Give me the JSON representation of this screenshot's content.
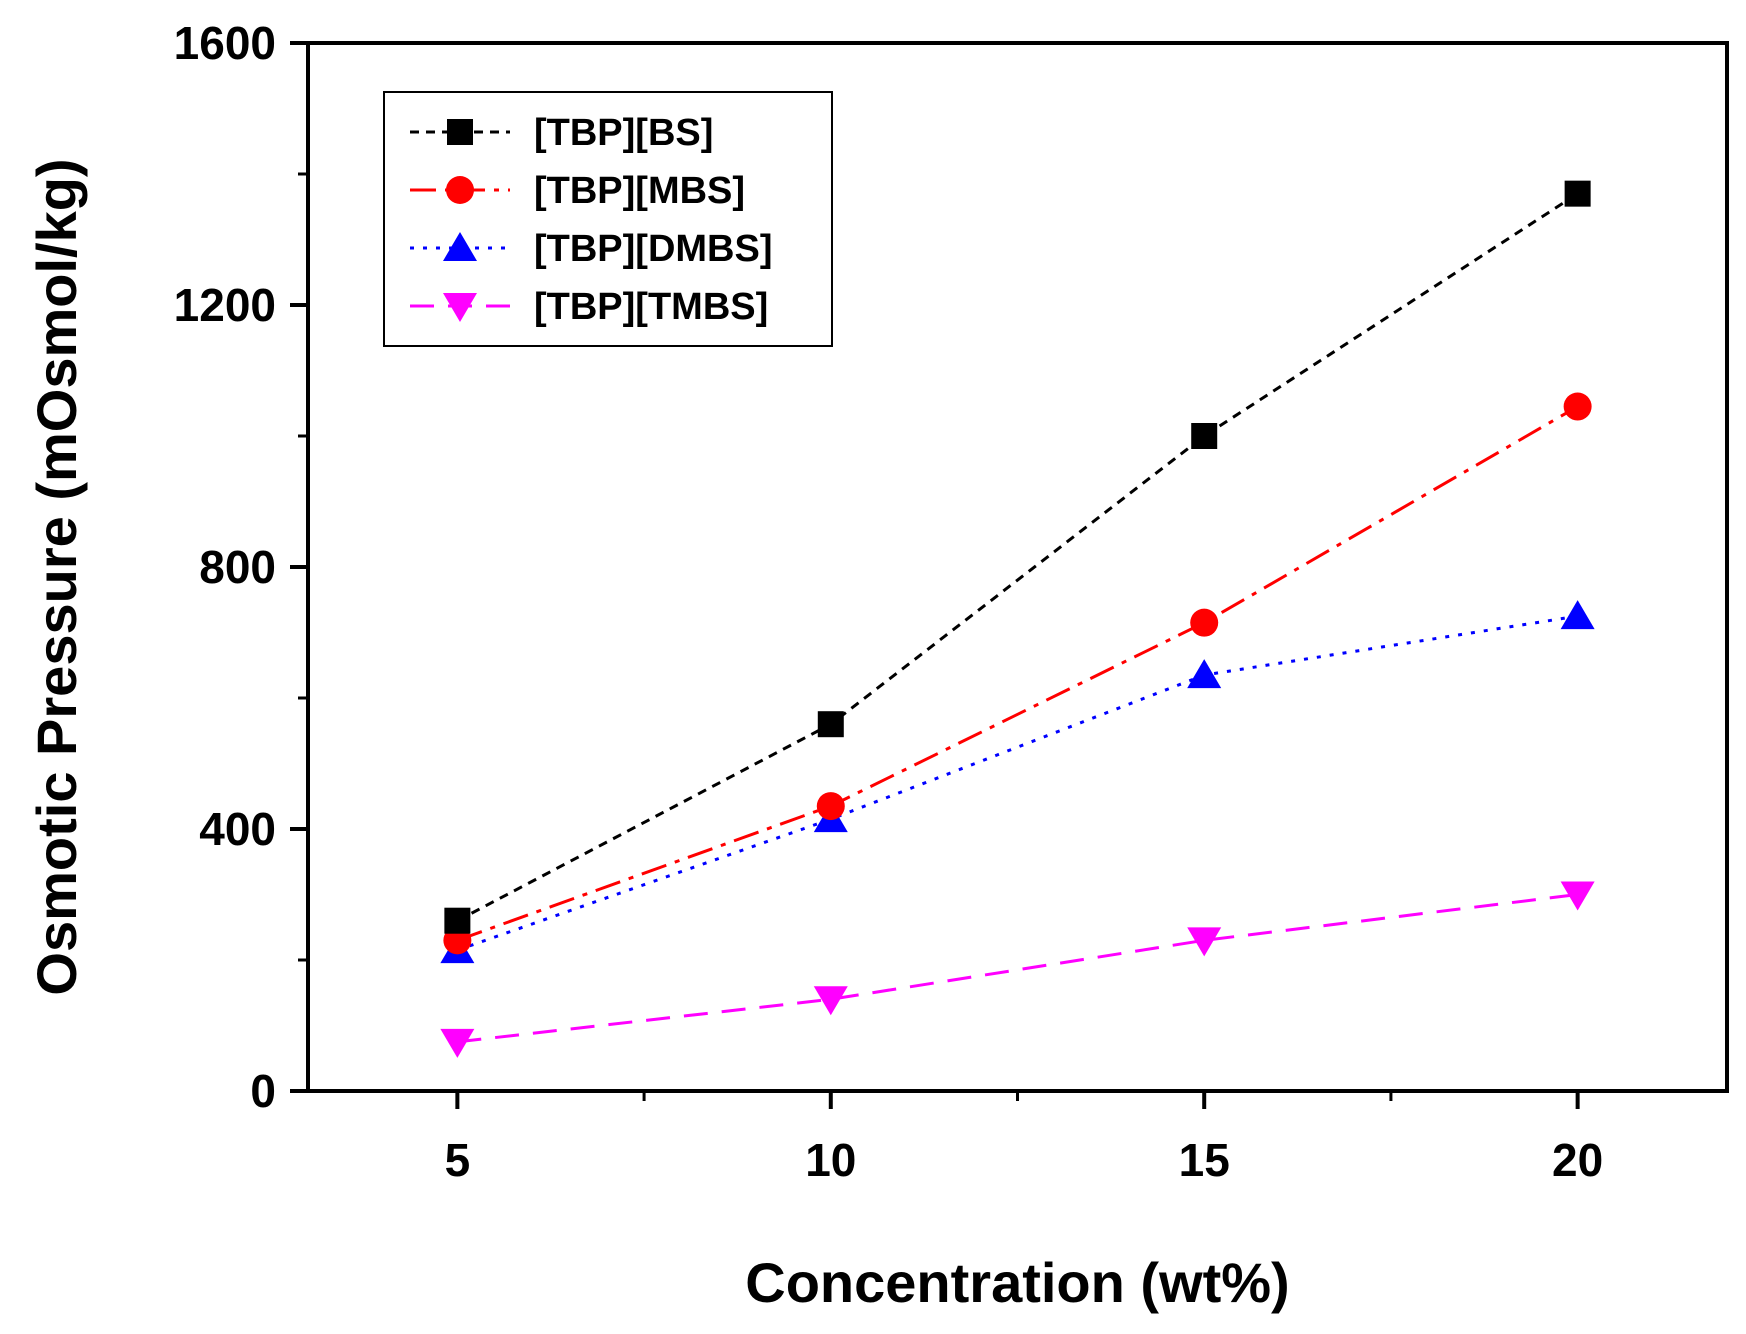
{
  "chart_data": {
    "type": "line",
    "xlabel": "Concentration (wt%)",
    "ylabel": "Osmotic Pressure (mOsmol/kg)",
    "xlim": [
      3,
      22
    ],
    "ylim": [
      0,
      1600
    ],
    "x_ticks": [
      5,
      10,
      15,
      20
    ],
    "x_tick_labels": [
      "5",
      "10",
      "15",
      "20"
    ],
    "x_minor_ticks": [
      7.5,
      12.5,
      17.5
    ],
    "y_ticks": [
      0,
      400,
      800,
      1200,
      1600
    ],
    "y_tick_labels": [
      "0",
      "400",
      "800",
      "1200",
      "1600"
    ],
    "y_minor_ticks": [
      200,
      600,
      1000,
      1400
    ],
    "grid": false,
    "legend_position": "top-left",
    "x": [
      5,
      10,
      15,
      20
    ],
    "series": [
      {
        "name": "[TBP][BS]",
        "values": [
          260,
          560,
          1000,
          1370
        ],
        "color": "#000000",
        "marker": "square",
        "dash": "short-dash"
      },
      {
        "name": "[TBP][MBS]",
        "values": [
          230,
          435,
          715,
          1045
        ],
        "color": "#ff0000",
        "marker": "circle",
        "dash": "dash-dot"
      },
      {
        "name": "[TBP][DMBS]",
        "values": [
          215,
          415,
          635,
          725
        ],
        "color": "#0000ff",
        "marker": "triangle-up",
        "dash": "dot"
      },
      {
        "name": "[TBP][TMBS]",
        "values": [
          75,
          140,
          230,
          300
        ],
        "color": "#ff00ff",
        "marker": "triangle-down",
        "dash": "dash"
      }
    ]
  }
}
